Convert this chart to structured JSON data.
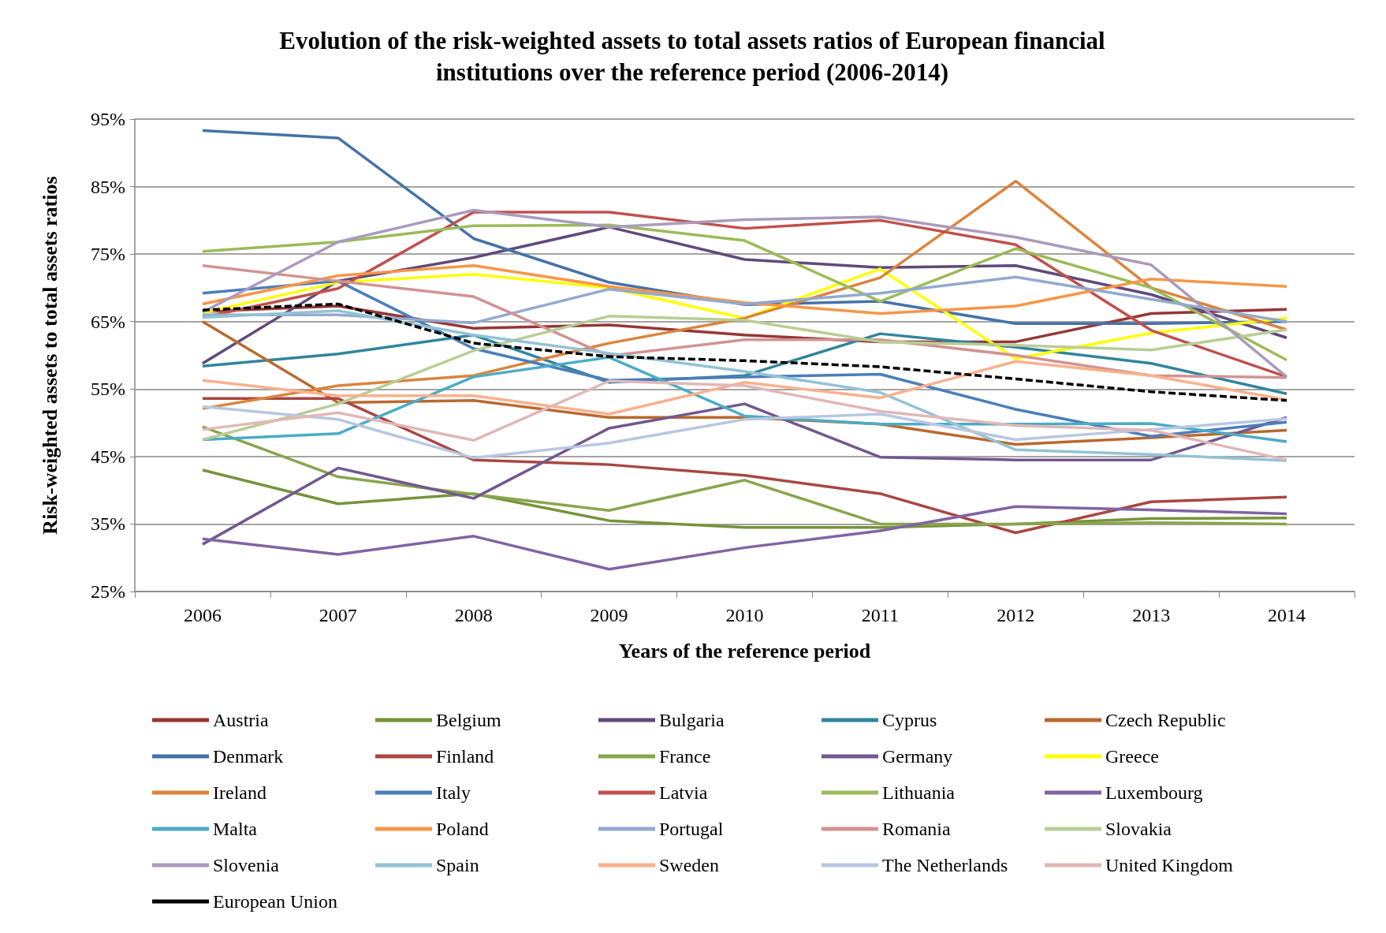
{
  "chart_data": {
    "type": "line",
    "title": "Evolution of the risk-weighted assets to total assets ratios of European financial\ninstitutions over the reference period (2006-2014)",
    "xlabel": "Years of the reference period",
    "ylabel": "Risk-weighted assets to total assets ratios",
    "categories": [
      "2006",
      "2007",
      "2008",
      "2009",
      "2010",
      "2011",
      "2012",
      "2013",
      "2014"
    ],
    "ylim": [
      25,
      95
    ],
    "yticks": [
      {
        "value": 25,
        "label": "25%"
      },
      {
        "value": 35,
        "label": "35%"
      },
      {
        "value": 45,
        "label": "45%"
      },
      {
        "value": 55,
        "label": "55%"
      },
      {
        "value": 65,
        "label": "65%"
      },
      {
        "value": 75,
        "label": "75%"
      },
      {
        "value": 85,
        "label": "85%"
      },
      {
        "value": 95,
        "label": "95%"
      }
    ],
    "grid": "y",
    "legend": "bottom",
    "marker": "none",
    "line_style": "solid",
    "series": [
      {
        "name": "Austria",
        "color": "#953735",
        "values": [
          66.5,
          67.3,
          64,
          64.5,
          63,
          62,
          62,
          66.2,
          66.8
        ]
      },
      {
        "name": "Belgium",
        "color": "#77933c",
        "values": [
          43,
          38,
          39.5,
          35.5,
          34.5,
          34.5,
          35,
          35.8,
          35.9
        ]
      },
      {
        "name": "Bulgaria",
        "color": "#604a7b",
        "values": [
          58.8,
          71,
          74.5,
          79,
          74.2,
          73,
          73.3,
          69,
          62.6
        ]
      },
      {
        "name": "Cyprus",
        "color": "#31859c",
        "values": [
          58.4,
          60.2,
          63,
          56,
          57,
          63.2,
          61.2,
          58.8,
          54.3
        ]
      },
      {
        "name": "Czech Republic",
        "color": "#b9692e",
        "values": [
          65,
          53,
          53.3,
          50.8,
          50.8,
          49.8,
          46.8,
          47.8,
          48.9
        ]
      },
      {
        "name": "Denmark",
        "color": "#4572a7",
        "values": [
          93.3,
          92.2,
          77.3,
          70.8,
          67.5,
          68,
          64.7,
          64.7,
          65
        ]
      },
      {
        "name": "Finland",
        "color": "#aa4643",
        "values": [
          53.6,
          53.6,
          44.5,
          43.8,
          42.2,
          39.5,
          33.7,
          38.3,
          39
        ]
      },
      {
        "name": "France",
        "color": "#89a54e",
        "values": [
          49.4,
          42,
          39.4,
          37,
          41.5,
          35,
          35,
          35.2,
          35
        ]
      },
      {
        "name": "Germany",
        "color": "#71588f",
        "values": [
          32,
          43.3,
          38.8,
          49.2,
          52.8,
          44.9,
          44.5,
          44.5,
          50.8
        ]
      },
      {
        "name": "Greece",
        "color": "#ffff00",
        "values": [
          66.3,
          70.8,
          72,
          70,
          65.5,
          72.8,
          59.5,
          63.3,
          65.5
        ]
      },
      {
        "name": "Ireland",
        "color": "#db843d",
        "values": [
          52.1,
          55.5,
          57,
          61.8,
          65.5,
          71.5,
          85.8,
          70,
          63.8
        ]
      },
      {
        "name": "Italy",
        "color": "#4a7ebb",
        "values": [
          69.2,
          71,
          61,
          56.3,
          56.8,
          57.2,
          52,
          48,
          50.1
        ]
      },
      {
        "name": "Latvia",
        "color": "#c0504d",
        "values": [
          65.6,
          69.9,
          81.2,
          81.2,
          78.8,
          80,
          76.4,
          63.7,
          56.8
        ]
      },
      {
        "name": "Lithuania",
        "color": "#9bbb59",
        "values": [
          75.4,
          76.8,
          79.2,
          79.3,
          77,
          68,
          75.8,
          70,
          59.3
        ]
      },
      {
        "name": "Luxembourg",
        "color": "#8064a2",
        "values": [
          32.8,
          30.5,
          33.2,
          28.3,
          31.5,
          34,
          37.6,
          37.1,
          36.5
        ]
      },
      {
        "name": "Malta",
        "color": "#4bacc6",
        "values": [
          47.5,
          48.4,
          56.8,
          59.7,
          51,
          49.8,
          49.8,
          49.9,
          47.2
        ]
      },
      {
        "name": "Poland",
        "color": "#f79646",
        "values": [
          67.6,
          71.8,
          73.3,
          70.2,
          67.8,
          66.2,
          67.3,
          71.3,
          70.2
        ]
      },
      {
        "name": "Portugal",
        "color": "#93a9cf",
        "values": [
          66,
          66,
          64.8,
          69.8,
          67.6,
          69.2,
          71.6,
          68.3,
          65
        ]
      },
      {
        "name": "Romania",
        "color": "#d19392",
        "values": [
          73.3,
          71,
          68.7,
          59.9,
          62.3,
          62.3,
          60,
          57,
          56.7
        ]
      },
      {
        "name": "Slovakia",
        "color": "#b9cd96",
        "values": [
          47.5,
          52.8,
          60.7,
          65.8,
          65.2,
          62,
          61.5,
          60.8,
          63.8
        ]
      },
      {
        "name": "Slovenia",
        "color": "#a99bbd",
        "values": [
          66.4,
          76.8,
          81.5,
          79,
          80.1,
          80.5,
          77.5,
          73.4,
          56.8
        ]
      },
      {
        "name": "Spain",
        "color": "#92c3d4",
        "values": [
          65.6,
          66.6,
          63,
          60.3,
          57.6,
          54.5,
          46,
          45.3,
          44.4
        ]
      },
      {
        "name": "Sweden",
        "color": "#fab08e",
        "values": [
          56.3,
          54,
          54,
          51.3,
          56,
          53.7,
          59.1,
          57,
          53.4
        ]
      },
      {
        "name": "The Netherlands",
        "color": "#b9c7e0",
        "values": [
          52.4,
          50.5,
          44.8,
          47,
          50.5,
          51.3,
          47.5,
          49,
          50.6
        ]
      },
      {
        "name": "United Kingdom",
        "color": "#e0b8b7",
        "values": [
          49,
          51.5,
          47.4,
          56.2,
          55.5,
          51.7,
          49.6,
          48.9,
          44.5
        ]
      },
      {
        "name": "European Union",
        "color": "#000000",
        "line_style": "dashed",
        "values": [
          66.7,
          67.6,
          61.8,
          59.8,
          59.2,
          58.3,
          56.5,
          54.6,
          53.3
        ]
      }
    ]
  }
}
